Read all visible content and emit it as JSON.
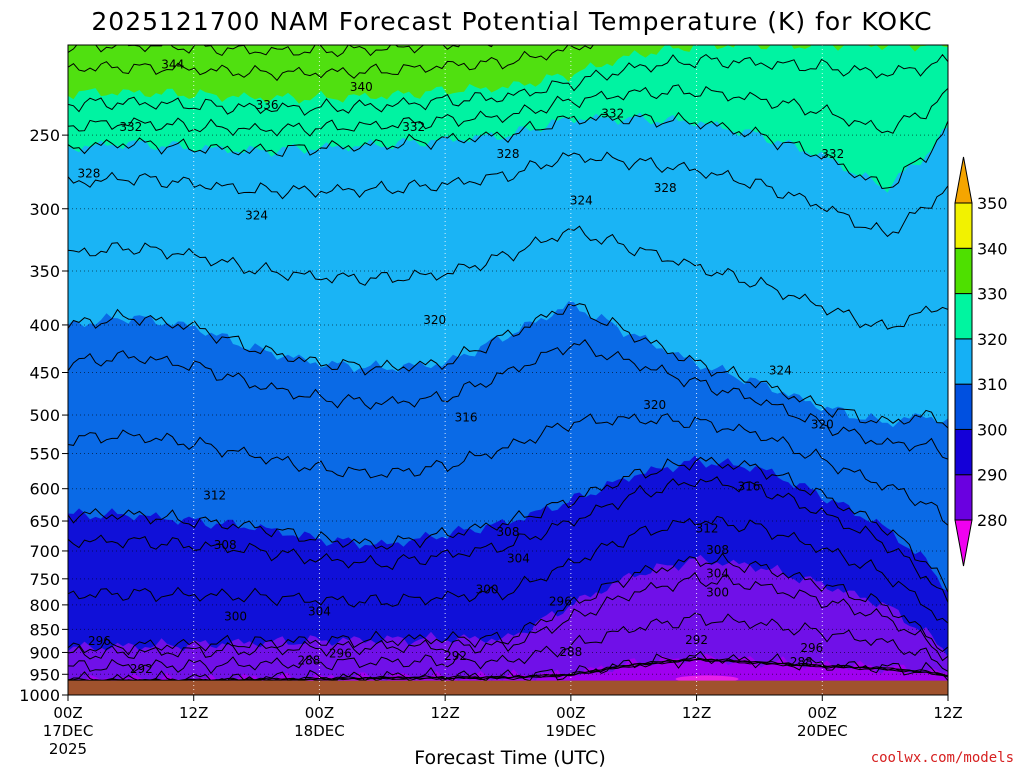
{
  "chart_data": {
    "type": "heatmap",
    "title": "2025121700 NAM Forecast Potential Temperature (K) for KOKC",
    "xlabel": "Forecast Time (UTC)",
    "ylabel": "",
    "credit": "coolwx.com/models",
    "units": "K",
    "y_scale": "log-pressure",
    "ylim": [
      1000,
      200
    ],
    "xlim": [
      0,
      84
    ],
    "grid": true,
    "x_ticks": [
      {
        "hour": 0,
        "line1": "00Z",
        "line2": "17DEC",
        "line3": "2025"
      },
      {
        "hour": 12,
        "line1": "12Z",
        "line2": "",
        "line3": ""
      },
      {
        "hour": 24,
        "line1": "00Z",
        "line2": "18DEC",
        "line3": ""
      },
      {
        "hour": 36,
        "line1": "12Z",
        "line2": "",
        "line3": ""
      },
      {
        "hour": 48,
        "line1": "00Z",
        "line2": "19DEC",
        "line3": ""
      },
      {
        "hour": 60,
        "line1": "12Z",
        "line2": "",
        "line3": ""
      },
      {
        "hour": 72,
        "line1": "00Z",
        "line2": "20DEC",
        "line3": ""
      },
      {
        "hour": 84,
        "line1": "12Z",
        "line2": "",
        "line3": ""
      }
    ],
    "y_ticks": [
      250,
      300,
      350,
      400,
      450,
      500,
      550,
      600,
      650,
      700,
      750,
      800,
      850,
      900,
      950,
      1000
    ],
    "surface_pressure": 965,
    "colorbar": {
      "levels": [
        280,
        290,
        300,
        310,
        320,
        330,
        340,
        350
      ],
      "labels": [
        "280",
        "290",
        "300",
        "310",
        "320",
        "330",
        "340",
        "350"
      ],
      "colors": [
        "#9b00e8",
        "#6a00e0",
        "#1400d8",
        "#0050e0",
        "#15b0f5",
        "#00f5a0",
        "#4ee000",
        "#f2f200"
      ],
      "over_color": "#f5a500",
      "under_color": "#f000f0"
    },
    "layer_colors": [
      "#a000f0",
      "#7010e8",
      "#1010d8",
      "#0a6ae6",
      "#1ab4f5",
      "#00f3a2",
      "#50e010",
      "#f2f205"
    ],
    "hot_color": "#e820e8",
    "surface_color": "#a0522d",
    "series": [
      {
        "theta": 290,
        "values": [
          962,
          962,
          962,
          960,
          958,
          956,
          955,
          955,
          948,
          925,
          912,
          920,
          928,
          934,
          942,
          950
        ]
      },
      {
        "theta": 300,
        "values": [
          890,
          886,
          882,
          878,
          874,
          872,
          870,
          870,
          800,
          742,
          715,
          728,
          760,
          800,
          860,
          900
        ]
      },
      {
        "theta": 310,
        "values": [
          640,
          640,
          650,
          660,
          680,
          690,
          672,
          652,
          618,
          580,
          560,
          570,
          610,
          660,
          720,
          770
        ]
      },
      {
        "theta": 320,
        "values": [
          400,
          392,
          402,
          425,
          440,
          445,
          440,
          410,
          380,
          410,
          440,
          462,
          490,
          510,
          500,
          510
        ]
      },
      {
        "theta": 330,
        "values": [
          258,
          255,
          258,
          260,
          258,
          256,
          253,
          250,
          240,
          240,
          242,
          250,
          263,
          285,
          262,
          245
        ]
      },
      {
        "theta": 340,
        "values": [
          225,
          225,
          226,
          228,
          228,
          227,
          224,
          222,
          215,
          205,
          200,
          200,
          200,
          200,
          200,
          200
        ]
      }
    ],
    "series_x": [
      0,
      6,
      12,
      18,
      24,
      30,
      36,
      42,
      48,
      54,
      60,
      66,
      72,
      78,
      82,
      84
    ],
    "hot_spot": {
      "x": [
        58,
        64
      ],
      "p_top": 948,
      "p_bottom": 965
    },
    "contour_labels": [
      {
        "text": "344",
        "x": 10,
        "p": 210
      },
      {
        "text": "340",
        "x": 28,
        "p": 222
      },
      {
        "text": "336",
        "x": 19,
        "p": 232
      },
      {
        "text": "332",
        "x": 6,
        "p": 245
      },
      {
        "text": "332",
        "x": 33,
        "p": 245
      },
      {
        "text": "332",
        "x": 52,
        "p": 237
      },
      {
        "text": "332",
        "x": 73,
        "p": 262
      },
      {
        "text": "328",
        "x": 2,
        "p": 275
      },
      {
        "text": "328",
        "x": 42,
        "p": 262
      },
      {
        "text": "328",
        "x": 57,
        "p": 285
      },
      {
        "text": "324",
        "x": 18,
        "p": 305
      },
      {
        "text": "324",
        "x": 49,
        "p": 294
      },
      {
        "text": "324",
        "x": 68,
        "p": 448
      },
      {
        "text": "320",
        "x": 35,
        "p": 395
      },
      {
        "text": "320",
        "x": 56,
        "p": 488
      },
      {
        "text": "320",
        "x": 72,
        "p": 512
      },
      {
        "text": "316",
        "x": 38,
        "p": 503
      },
      {
        "text": "316",
        "x": 65,
        "p": 597
      },
      {
        "text": "312",
        "x": 14,
        "p": 610
      },
      {
        "text": "312",
        "x": 61,
        "p": 662
      },
      {
        "text": "308",
        "x": 15,
        "p": 690
      },
      {
        "text": "308",
        "x": 42,
        "p": 668
      },
      {
        "text": "308",
        "x": 62,
        "p": 698
      },
      {
        "text": "304",
        "x": 43,
        "p": 713
      },
      {
        "text": "304",
        "x": 62,
        "p": 740
      },
      {
        "text": "304",
        "x": 24,
        "p": 813
      },
      {
        "text": "300",
        "x": 16,
        "p": 823
      },
      {
        "text": "300",
        "x": 40,
        "p": 770
      },
      {
        "text": "300",
        "x": 62,
        "p": 776
      },
      {
        "text": "296",
        "x": 47,
        "p": 793
      },
      {
        "text": "296",
        "x": 3,
        "p": 875
      },
      {
        "text": "296",
        "x": 26,
        "p": 902
      },
      {
        "text": "296",
        "x": 71,
        "p": 890
      },
      {
        "text": "292",
        "x": 60,
        "p": 873
      },
      {
        "text": "292",
        "x": 37,
        "p": 908
      },
      {
        "text": "292",
        "x": 7,
        "p": 938
      },
      {
        "text": "288",
        "x": 48,
        "p": 899
      },
      {
        "text": "288",
        "x": 23,
        "p": 918
      },
      {
        "text": "288",
        "x": 70,
        "p": 922
      }
    ]
  }
}
